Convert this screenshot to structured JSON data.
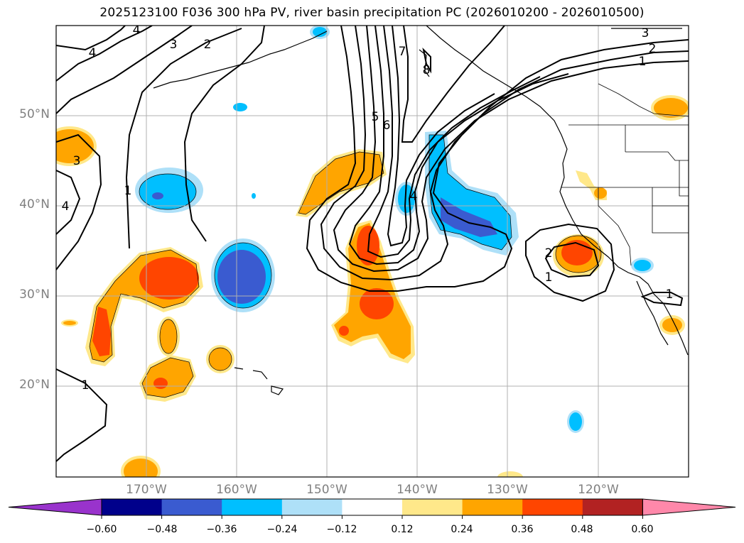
{
  "title": "2025123100 F036 300 hPa PV, river basin precipitation PC (2026010200 - 2026010500)",
  "latitude_labels": [
    "50°N",
    "40°N",
    "30°N",
    "20°N"
  ],
  "longitude_labels": [
    "170°W",
    "160°W",
    "150°W",
    "140°W",
    "130°W",
    "120°W"
  ],
  "colorbar": {
    "tick_labels": [
      "−0.60",
      "−0.48",
      "−0.36",
      "−0.24",
      "−0.12",
      "0.12",
      "0.24",
      "0.36",
      "0.48",
      "0.60"
    ],
    "colors": [
      "#9933cc",
      "#00008b",
      "#3a5bd0",
      "#00bfff",
      "#aee0f8",
      "#ffffff",
      "#ffe88a",
      "#ffa500",
      "#ff4500",
      "#b22222",
      "#ff88aa"
    ],
    "extend": "both"
  },
  "pv_contour_labels": [
    "4",
    "3",
    "2",
    "4",
    "3",
    "1",
    "4",
    "7",
    "8",
    "5",
    "6",
    "4",
    "3",
    "2",
    "1",
    "2",
    "1",
    "1",
    "1"
  ],
  "map_extent": {
    "lon_min": -180,
    "lon_max": -110,
    "lat_min": 10,
    "lat_max": 60
  }
}
